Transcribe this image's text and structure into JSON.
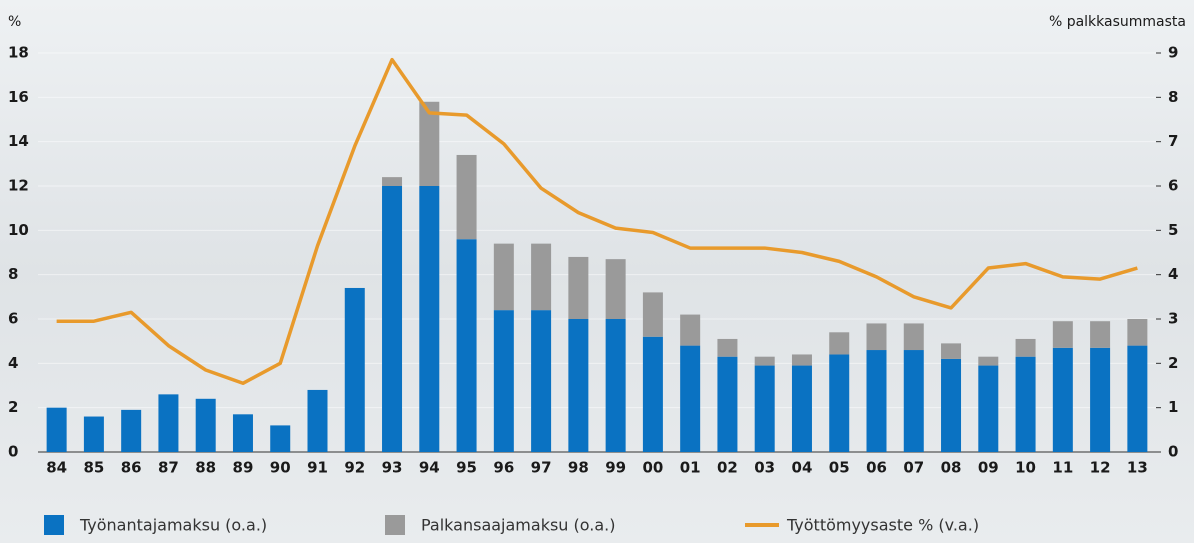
{
  "chart_data": {
    "type": "bar-line",
    "y_label": "%",
    "y2_label": "% palkkasummasta",
    "categories": [
      "84",
      "85",
      "86",
      "87",
      "88",
      "89",
      "90",
      "91",
      "92",
      "93",
      "94",
      "95",
      "96",
      "97",
      "98",
      "99",
      "00",
      "01",
      "02",
      "03",
      "04",
      "05",
      "06",
      "07",
      "08",
      "09",
      "10",
      "11",
      "12",
      "13"
    ],
    "ylim": [
      0,
      18
    ],
    "yticks": [
      0,
      2,
      4,
      6,
      8,
      10,
      12,
      14,
      16,
      18
    ],
    "y2lim": [
      0,
      9
    ],
    "y2ticks": [
      0,
      1,
      2,
      3,
      4,
      5,
      6,
      7,
      8,
      9
    ],
    "series": [
      {
        "name": "Työnantajamaksu (o.a.)",
        "type": "bar",
        "axis": "y2",
        "color": "#0a72c2",
        "values": [
          1.0,
          0.8,
          0.95,
          1.3,
          1.2,
          0.85,
          0.6,
          1.4,
          3.7,
          6.0,
          6.0,
          4.8,
          3.2,
          3.2,
          3.0,
          3.0,
          2.6,
          2.4,
          2.15,
          1.95,
          1.95,
          2.2,
          2.3,
          2.3,
          2.1,
          1.95,
          2.15,
          2.35,
          2.35,
          2.4
        ]
      },
      {
        "name": "Palkansaajamaksu (o.a.)",
        "type": "bar",
        "axis": "y2",
        "color": "#9a9a9a",
        "values": [
          0,
          0,
          0,
          0,
          0,
          0,
          0,
          0,
          0,
          0.2,
          1.9,
          1.9,
          1.5,
          1.5,
          1.4,
          1.35,
          1.0,
          0.7,
          0.4,
          0.2,
          0.25,
          0.5,
          0.6,
          0.6,
          0.35,
          0.2,
          0.4,
          0.6,
          0.6,
          0.6
        ]
      },
      {
        "name": "Työttömyysaste % (v.a.)",
        "type": "line",
        "axis": "y",
        "color": "#e89a2c",
        "values": [
          5.9,
          5.9,
          6.3,
          4.8,
          3.7,
          3.1,
          4.0,
          9.3,
          13.8,
          17.7,
          15.3,
          15.2,
          13.9,
          11.9,
          10.8,
          10.1,
          9.9,
          9.2,
          9.2,
          9.2,
          9.0,
          8.6,
          7.9,
          7.0,
          6.5,
          8.3,
          8.5,
          7.9,
          7.8,
          8.3
        ]
      }
    ]
  }
}
